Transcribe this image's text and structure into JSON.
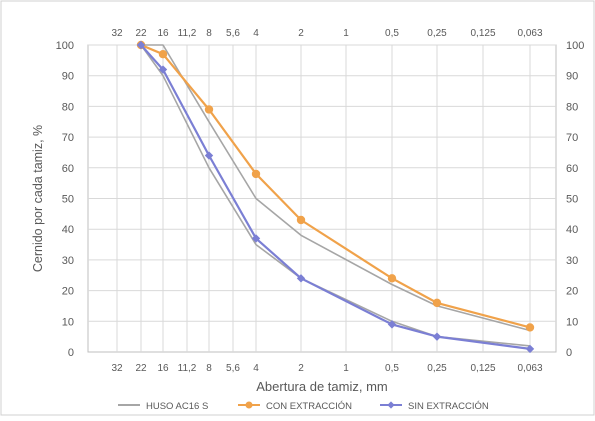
{
  "chart_data": {
    "type": "line",
    "xlabel": "Abertura de tamiz, mm",
    "ylabel": "Cernido por cada tamiz, %",
    "ylim": [
      0,
      100
    ],
    "yticks": [
      "0",
      "10",
      "20",
      "30",
      "40",
      "50",
      "60",
      "70",
      "80",
      "90",
      "100"
    ],
    "x_ticks": [
      "32",
      "22",
      "16",
      "11,2",
      "8",
      "5,6",
      "4",
      "2",
      "1",
      "0,5",
      "0,25",
      "0,125",
      "0,063"
    ],
    "x_tick_values": [
      32,
      22,
      16,
      11.2,
      8,
      5.6,
      4,
      2,
      1,
      0.5,
      0.25,
      0.125,
      0.063
    ],
    "x_scale": "sieve-log",
    "grid": true,
    "legend_position": "bottom",
    "series": [
      {
        "name": "HUSO AC16 S",
        "color": "#a6a6a6",
        "marker": "none",
        "lines": [
          {
            "x": [
              22,
              16,
              8,
              4,
              2,
              0.5,
              0.25,
              0.063
            ],
            "y": [
              100,
              90,
              60,
              35,
              24,
              10,
              5,
              2
            ]
          },
          {
            "x": [
              22,
              16,
              8,
              4,
              2,
              0.5,
              0.25,
              0.063
            ],
            "y": [
              100,
              100,
              75,
              50,
              38,
              22,
              15,
              7
            ]
          }
        ]
      },
      {
        "name": "CON EXTRACCIÓN",
        "color": "#f0a24a",
        "marker": "circle",
        "lines": [
          {
            "x": [
              22,
              16,
              8,
              4,
              2,
              0.5,
              0.25,
              0.063
            ],
            "y": [
              100,
              97,
              79,
              58,
              43,
              24,
              16,
              8
            ]
          }
        ]
      },
      {
        "name": "SIN EXTRACCIÓN",
        "color": "#7b7fd4",
        "marker": "diamond",
        "lines": [
          {
            "x": [
              22,
              16,
              8,
              4,
              2,
              0.5,
              0.25,
              0.063
            ],
            "y": [
              100,
              92,
              64,
              37,
              24,
              9,
              5,
              1
            ]
          }
        ]
      }
    ]
  }
}
